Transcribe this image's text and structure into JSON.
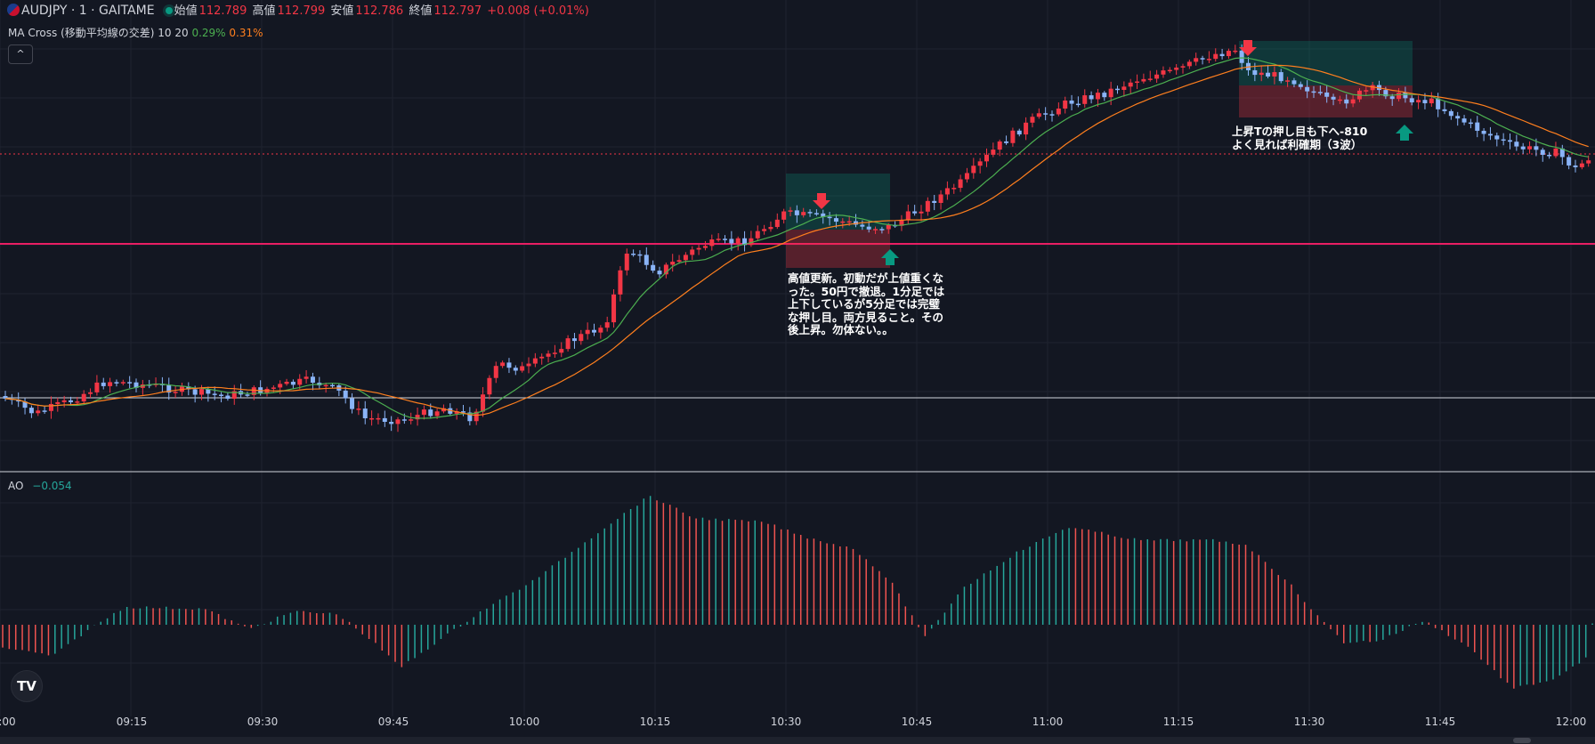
{
  "legend": {
    "symbol": "AUDJPY · 1 · GAITAME",
    "open_label": "始値",
    "open": "112.789",
    "high_label": "高値",
    "high": "112.799",
    "low_label": "安値",
    "low": "112.786",
    "close_label": "終値",
    "close": "112.797",
    "change": "+0.008 (+0.01%)"
  },
  "ma_legend": {
    "name": "MA Cross (移動平均線の交差) 10 20",
    "v1": "0.29%",
    "v2": "0.31%"
  },
  "ao_legend": {
    "name": "AO",
    "value": "−0.054"
  },
  "collapse_icon": "^",
  "tv_logo": "TV",
  "notes": {
    "first": "高値更新。初動だが上値重くな\nった。50円で撤退。1分足では\n上下しているが5分足では完璧\nな押し目。両方見ること。その\n後上昇。勿体ない。。",
    "second": "上昇Tの押し目も下へ-810\nよく見れば利確期（3波）"
  },
  "colors": {
    "up": "#f23645",
    "down": "#8ab4f8",
    "ma_fast": "#4caf50",
    "ma_slow": "#ff7f1e",
    "ao_up": "#26a69a",
    "ao_down": "#ef5350",
    "bg": "#131722",
    "grid": "#1f2330"
  },
  "chart_data": [
    {
      "type": "candlestick",
      "symbol": "AUDJPY",
      "timeframe": "1",
      "x_ticks": [
        ":00",
        "09:15",
        "09:30",
        "09:45",
        "10:00",
        "10:15",
        "10:30",
        "10:45",
        "11:00",
        "11:15",
        "11:30",
        "11:45",
        "12:00"
      ],
      "last_close": 112.797,
      "series": [
        {
          "name": "MA 10"
        },
        {
          "name": "MA 20"
        }
      ]
    },
    {
      "type": "bar",
      "name": "AO",
      "last_value": -0.054
    }
  ]
}
